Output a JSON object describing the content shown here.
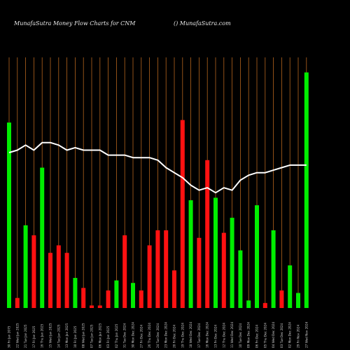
{
  "header": {
    "title": "MunafaSutra  Money Flow  Charts for CNM",
    "site": "() MunafaSutra.com"
  },
  "chart_data": {
    "type": "bar",
    "title": "MunafaSutra  Money Flow  Charts for CNM",
    "ylim": [
      0,
      100
    ],
    "grid": true,
    "colors": {
      "background": "#000000",
      "grid": "#b5651d",
      "up": "#00ee00",
      "down": "#ff1111",
      "line": "#ffffff",
      "text": "#e8e8e8"
    },
    "categories": [
      "30 Fri Jan 2075",
      "22 Wed Jan 2025",
      "21 Tue Jan 2025",
      "17 Fri Jan 2025",
      "16 Thu Jan 2025",
      "15 Wed Jan 2025",
      "14 Tue Jan 2025",
      "13 Mon Jan 2025",
      "10 Fri Jan 2025",
      "08 Wed Jan 2025",
      "07 Tue Jan 2025",
      "06 Mon Jan 2025",
      "03 Fri Jan 2025",
      "02 Thu Jan 2025",
      "31 Tue Dec 2024",
      "30 Mon Dec 2024",
      "27 Fri Dec 2024",
      "26 Thu Dec 2024",
      "24 Tue Dec 2024",
      "23 Mon Dec 2024",
      "20 Fri Dec 2024",
      "19 Thu Dec 2024",
      "18 Wed Dec 2024",
      "17 Tue Dec 2024",
      "16 Mon Dec 2024",
      "13 Fri Dec 2024",
      "12 Thu Dec 2024",
      "11 Wed Dec 2024",
      "10 Tue Dec 2024",
      "09 Mon Dec 2024",
      "06 Fri Dec 2024",
      "05 Thu Dec 2024",
      "04 Wed Dec 2024",
      "03 Tue Dec 2024",
      "02 Mon Dec 2024",
      "29 Fri Nov 2024",
      "27 Wed Nov 2024"
    ],
    "series": [
      {
        "values": [
          74,
          4,
          33,
          29,
          56,
          22,
          25,
          22,
          12,
          8,
          1,
          1,
          7,
          11,
          29,
          10,
          7,
          25,
          31,
          31,
          15,
          75,
          43,
          28,
          59,
          44,
          30,
          36,
          23,
          3,
          41,
          2,
          31,
          7,
          17,
          6,
          94
        ],
        "direction": [
          "up",
          "down",
          "up",
          "down",
          "up",
          "down",
          "down",
          "down",
          "up",
          "down",
          "down",
          "down",
          "down",
          "up",
          "down",
          "up",
          "down",
          "down",
          "down",
          "down",
          "down",
          "down",
          "up",
          "down",
          "down",
          "up",
          "down",
          "up",
          "up",
          "up",
          "up",
          "down",
          "up",
          "down",
          "up",
          "up",
          "up"
        ]
      },
      {
        "values": [
          62,
          63,
          65,
          63,
          66,
          66,
          65,
          63,
          64,
          63,
          63,
          63,
          61,
          61,
          61,
          60,
          60,
          60,
          59,
          56,
          54,
          52,
          49,
          47,
          48,
          46,
          48,
          47,
          51,
          53,
          54,
          54,
          55,
          56,
          57,
          57,
          57
        ]
      }
    ]
  }
}
